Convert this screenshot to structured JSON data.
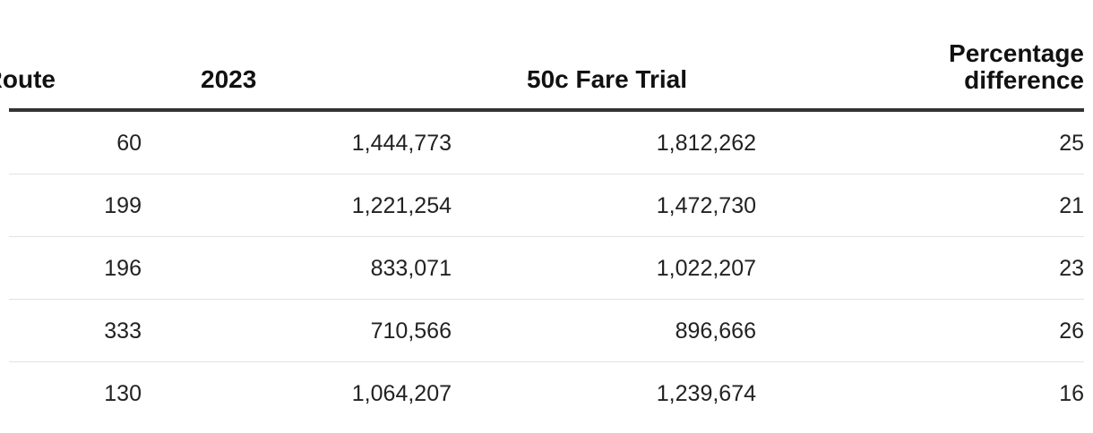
{
  "chart_data": {
    "type": "table",
    "columns": [
      "Route",
      "2023",
      "50c Fare Trial",
      "Percentage difference"
    ],
    "header_pct_lines": [
      "Percentage",
      "difference"
    ],
    "rows": [
      {
        "route": "60",
        "y2023": "1,444,773",
        "trial": "1,812,262",
        "pct": "25"
      },
      {
        "route": "199",
        "y2023": "1,221,254",
        "trial": "1,472,730",
        "pct": "21"
      },
      {
        "route": "196",
        "y2023": "833,071",
        "trial": "1,022,207",
        "pct": "23"
      },
      {
        "route": "333",
        "y2023": "710,566",
        "trial": "896,666",
        "pct": "26"
      },
      {
        "route": "130",
        "y2023": "1,064,207",
        "trial": "1,239,674",
        "pct": "16"
      }
    ],
    "colors": {
      "header_rule": "#333333",
      "row_separator": "#e2e2e2",
      "text": "#222222"
    }
  }
}
